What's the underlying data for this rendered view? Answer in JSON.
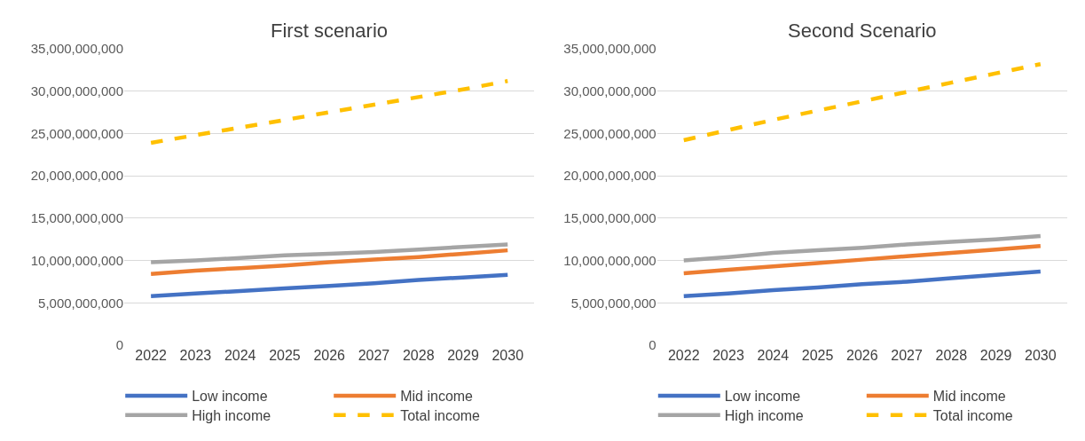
{
  "chart_data": [
    {
      "type": "line",
      "title": "First scenario",
      "categories": [
        "2022",
        "2023",
        "2024",
        "2025",
        "2026",
        "2027",
        "2028",
        "2029",
        "2030"
      ],
      "series": [
        {
          "name": "Low income",
          "color": "#4472c4",
          "values": [
            5800000000,
            6100000000,
            6400000000,
            6700000000,
            7000000000,
            7300000000,
            7700000000,
            8000000000,
            8300000000
          ]
        },
        {
          "name": "Mid income",
          "color": "#ed7d31",
          "values": [
            8400000000,
            8800000000,
            9100000000,
            9400000000,
            9800000000,
            10100000000,
            10400000000,
            10800000000,
            11200000000
          ]
        },
        {
          "name": "High income",
          "color": "#a5a5a5",
          "values": [
            9800000000,
            10000000000,
            10300000000,
            10600000000,
            10800000000,
            11000000000,
            11300000000,
            11600000000,
            11900000000
          ]
        },
        {
          "name": "Total income",
          "color": "#ffc000",
          "line_style": "dashed",
          "values": [
            23900000000,
            24800000000,
            25700000000,
            26600000000,
            27500000000,
            28400000000,
            29300000000,
            30200000000,
            31200000000
          ]
        }
      ],
      "ylim": [
        0,
        35000000000
      ],
      "yticks": [
        0,
        {
          "value": 5000000000,
          "label": "5,000,000,000"
        },
        {
          "value": 10000000000,
          "label": "10,000,000,000"
        },
        {
          "value": 15000000000,
          "label": "15,000,000,000"
        },
        {
          "value": 20000000000,
          "label": "20,000,000,000"
        },
        {
          "value": 25000000000,
          "label": "25,000,000,000"
        },
        {
          "value": 30000000000,
          "label": "30,000,000,000"
        },
        {
          "value": 35000000000,
          "label": "35,000,000,000"
        }
      ],
      "grid": "y",
      "legend": "bottom",
      "marker": "none"
    },
    {
      "type": "line",
      "title": "Second Scenario",
      "categories": [
        "2022",
        "2023",
        "2024",
        "2025",
        "2026",
        "2027",
        "2028",
        "2029",
        "2030"
      ],
      "series": [
        {
          "name": "Low income",
          "color": "#4472c4",
          "values": [
            5800000000,
            6100000000,
            6500000000,
            6800000000,
            7200000000,
            7500000000,
            7900000000,
            8300000000,
            8700000000
          ]
        },
        {
          "name": "Mid income",
          "color": "#ed7d31",
          "values": [
            8500000000,
            8900000000,
            9300000000,
            9700000000,
            10100000000,
            10500000000,
            10900000000,
            11300000000,
            11700000000
          ]
        },
        {
          "name": "High income",
          "color": "#a5a5a5",
          "values": [
            10000000000,
            10400000000,
            10900000000,
            11200000000,
            11500000000,
            11900000000,
            12200000000,
            12500000000,
            12900000000
          ]
        },
        {
          "name": "Total income",
          "color": "#ffc000",
          "line_style": "dashed",
          "values": [
            24200000000,
            25400000000,
            26600000000,
            27700000000,
            28800000000,
            29900000000,
            31000000000,
            32100000000,
            33200000000
          ]
        }
      ],
      "ylim": [
        0,
        35000000000
      ],
      "yticks": [
        0,
        {
          "value": 5000000000,
          "label": "5,000,000,000"
        },
        {
          "value": 10000000000,
          "label": "10,000,000,000"
        },
        {
          "value": 15000000000,
          "label": "15,000,000,000"
        },
        {
          "value": 20000000000,
          "label": "20,000,000,000"
        },
        {
          "value": 25000000000,
          "label": "25,000,000,000"
        },
        {
          "value": 30000000000,
          "label": "30,000,000,000"
        },
        {
          "value": 35000000000,
          "label": "35,000,000,000"
        }
      ],
      "grid": "y",
      "legend": "bottom",
      "marker": "none"
    }
  ]
}
